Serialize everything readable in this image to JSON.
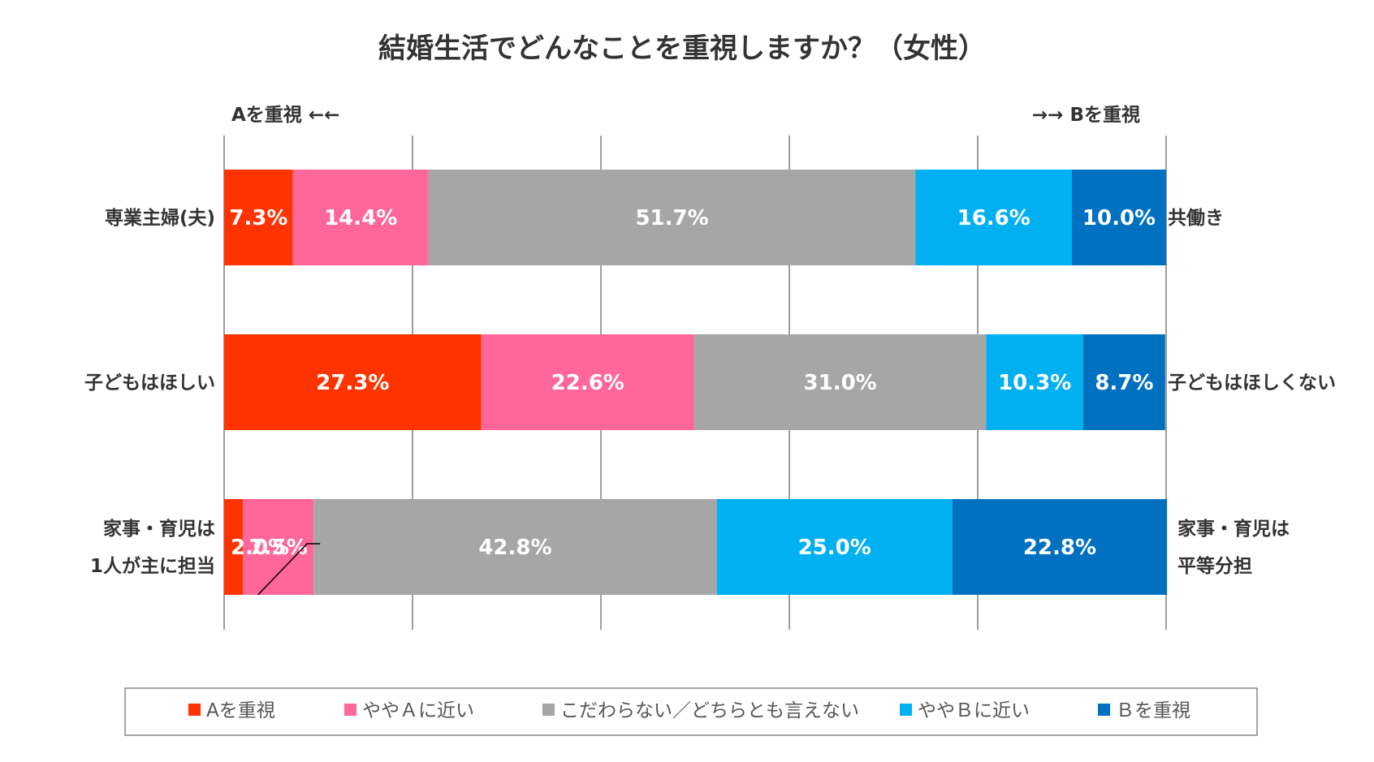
{
  "chart_data": {
    "type": "bar",
    "orientation": "horizontal",
    "stacked": true,
    "title": "結婚生活でどんなことを重視しますか？（女性）",
    "left_direction_label": "Aを重視 ←←",
    "right_direction_label": "→→ Bを重視",
    "xlim": [
      0,
      100
    ],
    "grid": true,
    "legend_position": "bottom",
    "categories": [
      {
        "left": [
          "専業主婦(夫)"
        ],
        "right": [
          "共働き"
        ]
      },
      {
        "left": [
          "子どもはほしい"
        ],
        "right": [
          "子どもはほしくない"
        ]
      },
      {
        "left": [
          "家事・育児は",
          "1人が主に担当"
        ],
        "right": [
          "家事・育児は",
          "平等分担"
        ]
      }
    ],
    "series": [
      {
        "name": "Aを重視",
        "color": "#ff3300",
        "values": [
          7.3,
          27.3,
          2.0
        ],
        "labels": [
          "7.3%",
          "27.3%",
          "2.0%"
        ]
      },
      {
        "name": "ややＡに近い",
        "color": "#ff6699",
        "values": [
          14.4,
          22.6,
          7.5
        ],
        "labels": [
          "14.4%",
          "22.6%",
          "7.5%"
        ]
      },
      {
        "name": "こだわらない／どちらとも言えない",
        "color": "#a6a6a6",
        "values": [
          51.7,
          31.0,
          42.8
        ],
        "labels": [
          "51.7%",
          "31.0%",
          "42.8%"
        ]
      },
      {
        "name": "ややＢに近い",
        "color": "#00b0f0",
        "values": [
          16.6,
          10.3,
          25.0
        ],
        "labels": [
          "16.6%",
          "10.3%",
          "25.0%"
        ]
      },
      {
        "name": "Ｂを重視",
        "color": "#0070c0",
        "values": [
          10.0,
          8.7,
          22.8
        ],
        "labels": [
          "10.0%",
          "8.7%",
          "22.8%"
        ]
      }
    ]
  }
}
